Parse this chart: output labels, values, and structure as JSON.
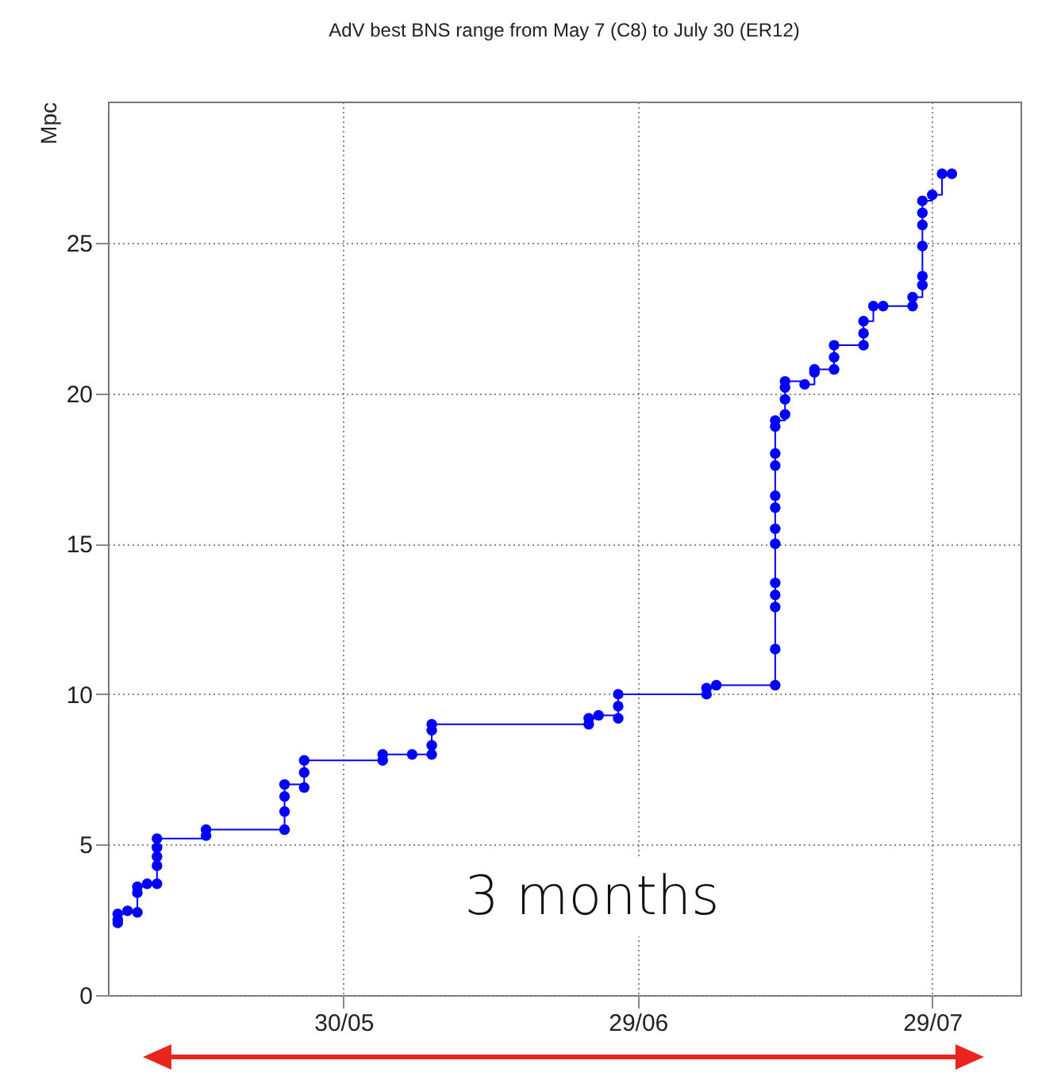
{
  "chart_data": {
    "type": "step",
    "title": "AdV best BNS range from May 7 (C8) to July 30 (ER12)",
    "ylabel": "Mpc",
    "x": [
      "--05-07",
      "--05-07",
      "--05-07",
      "--05-08",
      "--05-09",
      "--05-09",
      "--05-09",
      "--05-10",
      "--05-11",
      "--05-11",
      "--05-11",
      "--05-11",
      "--05-11",
      "--05-16",
      "--05-16",
      "--05-24",
      "--05-24",
      "--05-24",
      "--05-24",
      "--05-26",
      "--05-26",
      "--05-26",
      "--06-03",
      "--06-03",
      "--06-06",
      "--06-08",
      "--06-08",
      "--06-08",
      "--06-08",
      "--06-24",
      "--06-24",
      "--06-25",
      "--06-27",
      "--06-27",
      "--06-27",
      "--07-06",
      "--07-06",
      "--07-07",
      "--07-13",
      "--07-13",
      "--07-13",
      "--07-13",
      "--07-13",
      "--07-13",
      "--07-13",
      "--07-13",
      "--07-13",
      "--07-13",
      "--07-13",
      "--07-13",
      "--07-13",
      "--07-14",
      "--07-14",
      "--07-14",
      "--07-14",
      "--07-16",
      "--07-17",
      "--07-17",
      "--07-19",
      "--07-19",
      "--07-19",
      "--07-22",
      "--07-22",
      "--07-22",
      "--07-23",
      "--07-24",
      "--07-27",
      "--07-27",
      "--07-28",
      "--07-28",
      "--07-28",
      "--07-28",
      "--07-28",
      "--07-28",
      "--07-29",
      "--07-30",
      "--07-31"
    ],
    "series": [
      {
        "color": "#0000ff",
        "values": [
          2.4,
          2.5,
          2.7,
          2.8,
          2.75,
          3.4,
          3.6,
          3.7,
          3.7,
          4.3,
          4.6,
          4.9,
          5.2,
          5.3,
          5.5,
          5.5,
          6.1,
          6.6,
          7.0,
          6.9,
          7.4,
          7.8,
          7.8,
          8.0,
          8.0,
          8.0,
          8.3,
          8.8,
          9.0,
          9.0,
          9.2,
          9.3,
          9.2,
          9.6,
          10.0,
          10.0,
          10.2,
          10.3,
          10.3,
          11.5,
          12.9,
          13.3,
          13.7,
          15.0,
          15.5,
          16.2,
          16.6,
          17.6,
          18.0,
          18.9,
          19.1,
          19.3,
          19.8,
          20.2,
          20.4,
          20.3,
          20.7,
          20.8,
          20.8,
          21.2,
          21.6,
          21.6,
          22.0,
          22.4,
          22.9,
          22.9,
          22.9,
          23.2,
          23.6,
          23.9,
          24.9,
          25.6,
          26.0,
          26.4,
          26.6,
          27.3,
          27.3
        ]
      }
    ],
    "xlim": [
      "--05-06",
      "--08-07"
    ],
    "xticks": [
      {
        "value": "--05-30",
        "label": "30/05"
      },
      {
        "value": "--06-29",
        "label": "29/06"
      },
      {
        "value": "--07-29",
        "label": "29/07"
      }
    ],
    "ylim": [
      0,
      29.7
    ],
    "yticks": [
      0,
      5,
      10,
      15,
      20,
      25
    ],
    "grid": true,
    "marker": "circle",
    "line_style": "solid",
    "annotations": [
      "3 months"
    ]
  }
}
